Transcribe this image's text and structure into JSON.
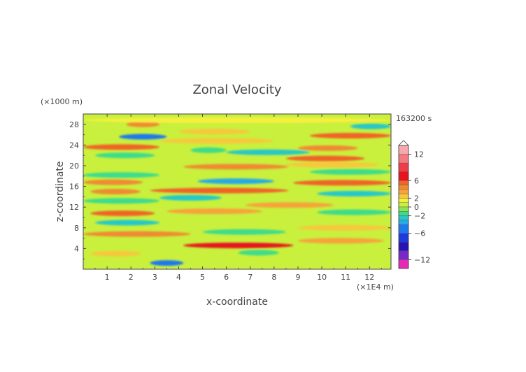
{
  "chart_data": {
    "type": "heatmap",
    "title": "Zonal Velocity",
    "xlabel": "x-coordinate",
    "ylabel": "z-coordinate",
    "x_unit": "(×1E4 m)",
    "y_unit": "(×1000 m)",
    "time_label": "163200 s",
    "xlim": [
      0,
      12.9
    ],
    "ylim": [
      0,
      30
    ],
    "x_ticks": [
      1,
      2,
      3,
      4,
      5,
      6,
      7,
      8,
      9,
      10,
      11,
      12
    ],
    "y_ticks": [
      4,
      8,
      12,
      16,
      20,
      24,
      28
    ],
    "colorbar": {
      "ticks": [
        12,
        6,
        2,
        0,
        -2,
        -6,
        -12
      ],
      "levels": [
        {
          "min": 12,
          "max": 14,
          "color": "#f7a8ac"
        },
        {
          "min": 10,
          "max": 12,
          "color": "#f47a80"
        },
        {
          "min": 8,
          "max": 10,
          "color": "#f03c46"
        },
        {
          "min": 6,
          "max": 8,
          "color": "#e6141e"
        },
        {
          "min": 5,
          "max": 6,
          "color": "#f06428"
        },
        {
          "min": 4,
          "max": 5,
          "color": "#f08a32"
        },
        {
          "min": 3,
          "max": 4,
          "color": "#f7a33a"
        },
        {
          "min": 2,
          "max": 3,
          "color": "#f7c83c"
        },
        {
          "min": 1,
          "max": 2,
          "color": "#f5f03c"
        },
        {
          "min": 0,
          "max": 1,
          "color": "#c8f03c"
        },
        {
          "min": -1,
          "max": 0,
          "color": "#8ce650"
        },
        {
          "min": -2,
          "max": -1,
          "color": "#3cdc8c"
        },
        {
          "min": -3,
          "max": -2,
          "color": "#28c8c8"
        },
        {
          "min": -4,
          "max": -3,
          "color": "#28aae6"
        },
        {
          "min": -6,
          "max": -4,
          "color": "#1e78f0"
        },
        {
          "min": -8,
          "max": -6,
          "color": "#1e3cdc"
        },
        {
          "min": -10,
          "max": -8,
          "color": "#2814b4"
        },
        {
          "min": -12,
          "max": -10,
          "color": "#7828c8"
        },
        {
          "min": -14,
          "max": -12,
          "color": "#e628b4"
        }
      ]
    },
    "bands": [
      {
        "z": 1.2,
        "x0": 2.8,
        "x1": 4.2,
        "value": -6
      },
      {
        "z": 3.0,
        "x0": 0.3,
        "x1": 2.4,
        "value": 2
      },
      {
        "z": 4.6,
        "x0": 4.2,
        "x1": 8.8,
        "value": 6
      },
      {
        "z": 3.2,
        "x0": 6.5,
        "x1": 8.2,
        "value": -2
      },
      {
        "z": 5.5,
        "x0": 9.0,
        "x1": 12.6,
        "value": 3
      },
      {
        "z": 6.8,
        "x0": 0.0,
        "x1": 4.5,
        "value": 4
      },
      {
        "z": 7.2,
        "x0": 5.0,
        "x1": 8.5,
        "value": -2
      },
      {
        "z": 8.0,
        "x0": 9.0,
        "x1": 12.9,
        "value": 2
      },
      {
        "z": 9.0,
        "x0": 0.5,
        "x1": 3.2,
        "value": -3
      },
      {
        "z": 10.8,
        "x0": 0.3,
        "x1": 3.0,
        "value": 5
      },
      {
        "z": 11.2,
        "x0": 3.5,
        "x1": 7.5,
        "value": 3
      },
      {
        "z": 12.4,
        "x0": 6.8,
        "x1": 10.5,
        "value": 3
      },
      {
        "z": 11.0,
        "x0": 9.8,
        "x1": 12.9,
        "value": -2
      },
      {
        "z": 13.2,
        "x0": 0.0,
        "x1": 3.2,
        "value": -2
      },
      {
        "z": 13.8,
        "x0": 3.2,
        "x1": 5.8,
        "value": -3
      },
      {
        "z": 15.2,
        "x0": 2.8,
        "x1": 8.6,
        "value": 5
      },
      {
        "z": 15.0,
        "x0": 0.3,
        "x1": 2.4,
        "value": 4
      },
      {
        "z": 14.6,
        "x0": 9.8,
        "x1": 12.9,
        "value": -3
      },
      {
        "z": 16.8,
        "x0": 0.0,
        "x1": 2.5,
        "value": 4
      },
      {
        "z": 17.0,
        "x0": 4.8,
        "x1": 8.0,
        "value": -4
      },
      {
        "z": 16.7,
        "x0": 8.8,
        "x1": 12.9,
        "value": 5
      },
      {
        "z": 18.2,
        "x0": 0.0,
        "x1": 3.2,
        "value": -2
      },
      {
        "z": 18.8,
        "x0": 9.5,
        "x1": 12.9,
        "value": -2
      },
      {
        "z": 19.8,
        "x0": 4.2,
        "x1": 8.6,
        "value": 4
      },
      {
        "z": 20.2,
        "x0": 8.5,
        "x1": 12.4,
        "value": 2
      },
      {
        "z": 21.4,
        "x0": 8.5,
        "x1": 11.8,
        "value": 5
      },
      {
        "z": 22.0,
        "x0": 0.5,
        "x1": 3.0,
        "value": -2
      },
      {
        "z": 22.6,
        "x0": 6.0,
        "x1": 9.5,
        "value": -3
      },
      {
        "z": 23.0,
        "x0": 4.5,
        "x1": 6.0,
        "value": -2
      },
      {
        "z": 23.6,
        "x0": 0.0,
        "x1": 3.2,
        "value": 5
      },
      {
        "z": 23.4,
        "x0": 9.0,
        "x1": 11.5,
        "value": 4
      },
      {
        "z": 24.8,
        "x0": 3.2,
        "x1": 8.0,
        "value": 2
      },
      {
        "z": 25.6,
        "x0": 1.5,
        "x1": 3.5,
        "value": -5
      },
      {
        "z": 25.8,
        "x0": 9.5,
        "x1": 12.9,
        "value": 5
      },
      {
        "z": 26.6,
        "x0": 4.0,
        "x1": 7.0,
        "value": 2
      },
      {
        "z": 27.6,
        "x0": 11.2,
        "x1": 12.9,
        "value": -3
      },
      {
        "z": 28.0,
        "x0": 1.8,
        "x1": 3.2,
        "value": 4
      },
      {
        "z": 28.8,
        "x0": 0.0,
        "x1": 12.9,
        "value": 1
      }
    ]
  }
}
